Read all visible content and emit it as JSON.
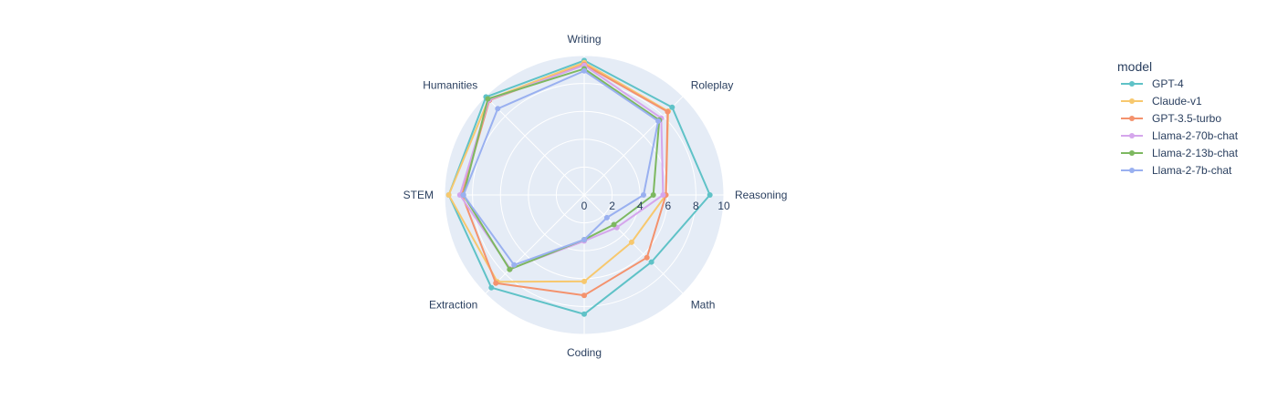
{
  "chart_data": {
    "type": "radar",
    "categories": [
      "Writing",
      "Roleplay",
      "Reasoning",
      "Math",
      "Coding",
      "Extraction",
      "STEM",
      "Humanities"
    ],
    "radial_range": [
      0,
      10
    ],
    "radial_ticks": [
      0,
      2,
      4,
      6,
      8,
      10
    ],
    "legend_title": "model",
    "legend_position": "right",
    "series": [
      {
        "name": "GPT-4",
        "color": "#5fc2c7",
        "values": [
          9.65,
          8.9,
          9.0,
          6.8,
          8.55,
          9.4,
          9.7,
          9.95
        ]
      },
      {
        "name": "Claude-v1",
        "color": "#f7c86e",
        "values": [
          9.5,
          8.5,
          5.85,
          4.8,
          6.2,
          8.8,
          9.7,
          9.7
        ]
      },
      {
        "name": "GPT-3.5-turbo",
        "color": "#f4926d",
        "values": [
          9.35,
          8.45,
          5.85,
          6.35,
          7.2,
          8.95,
          8.75,
          9.6
        ]
      },
      {
        "name": "Llama-2-70b-chat",
        "color": "#d5a6ec",
        "values": [
          9.3,
          7.8,
          5.65,
          3.3,
          3.3,
          7.5,
          8.9,
          9.65
        ]
      },
      {
        "name": "Llama-2-13b-chat",
        "color": "#7db860",
        "values": [
          9.05,
          7.6,
          4.95,
          3.0,
          3.2,
          7.55,
          8.65,
          9.75
        ]
      },
      {
        "name": "Llama-2-7b-chat",
        "color": "#99b0f0",
        "values": [
          8.9,
          7.5,
          4.25,
          2.3,
          3.2,
          7.1,
          8.65,
          8.75
        ]
      }
    ]
  }
}
